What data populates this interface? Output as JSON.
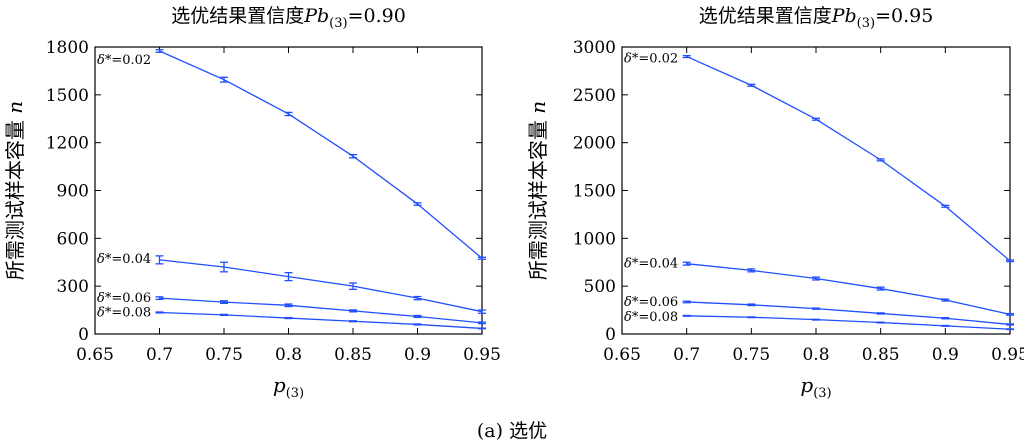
{
  "caption": "(a) 选优",
  "color": "#1f4fff",
  "chart_data": [
    {
      "type": "line",
      "title_prefix": "选优结果置信度",
      "title_var": "Pb",
      "title_sub": "(3)",
      "title_value": "=0.90",
      "xlabel_var": "p",
      "xlabel_sub": "(3)",
      "ylabel_text": "所需测试样本容量",
      "ylabel_var": "n",
      "xlim": [
        0.65,
        0.95
      ],
      "ylim": [
        0,
        1800
      ],
      "xticks": [
        0.65,
        0.7,
        0.75,
        0.8,
        0.85,
        0.9,
        0.95
      ],
      "xtick_labels": [
        "0.65",
        "0.7",
        "0.75",
        "0.8",
        "0.85",
        "0.9",
        "0.95"
      ],
      "yticks": [
        0,
        300,
        600,
        900,
        1200,
        1500,
        1800
      ],
      "ytick_labels": [
        "0",
        "300",
        "600",
        "900",
        "1200",
        "1500",
        "1800"
      ],
      "x": [
        0.7,
        0.75,
        0.8,
        0.85,
        0.9,
        0.95
      ],
      "series": [
        {
          "name": "δ*=0.02",
          "label_delta": "δ*",
          "label_value": "=0.02",
          "values": [
            1775,
            1595,
            1380,
            1115,
            815,
            475
          ],
          "errors": [
            8,
            15,
            10,
            10,
            8,
            6
          ]
        },
        {
          "name": "δ*=0.04",
          "label_delta": "δ*",
          "label_value": "=0.04",
          "values": [
            465,
            420,
            360,
            300,
            225,
            140
          ],
          "errors": [
            25,
            30,
            25,
            20,
            10,
            10
          ]
        },
        {
          "name": "δ*=0.06",
          "label_delta": "δ*",
          "label_value": "=0.06",
          "values": [
            225,
            200,
            180,
            145,
            110,
            70
          ],
          "errors": [
            8,
            8,
            8,
            6,
            6,
            5
          ]
        },
        {
          "name": "δ*=0.08",
          "label_delta": "δ*",
          "label_value": "=0.08",
          "values": [
            135,
            120,
            100,
            80,
            60,
            35
          ],
          "errors": [
            3,
            3,
            3,
            3,
            3,
            2
          ]
        }
      ]
    },
    {
      "type": "line",
      "title_prefix": "选优结果置信度",
      "title_var": "Pb",
      "title_sub": "(3)",
      "title_value": "=0.95",
      "xlabel_var": "p",
      "xlabel_sub": "(3)",
      "ylabel_text": "所需测试样本容量",
      "ylabel_var": "n",
      "xlim": [
        0.65,
        0.95
      ],
      "ylim": [
        0,
        3000
      ],
      "xticks": [
        0.65,
        0.7,
        0.75,
        0.8,
        0.85,
        0.9,
        0.95
      ],
      "xtick_labels": [
        "0.65",
        "0.7",
        "0.75",
        "0.8",
        "0.85",
        "0.9",
        "0.95"
      ],
      "yticks": [
        0,
        500,
        1000,
        1500,
        2000,
        2500,
        3000
      ],
      "ytick_labels": [
        "0",
        "500",
        "1000",
        "1500",
        "2000",
        "2500",
        "3000"
      ],
      "x": [
        0.7,
        0.75,
        0.8,
        0.85,
        0.9,
        0.95
      ],
      "series": [
        {
          "name": "δ*=0.02",
          "label_delta": "δ*",
          "label_value": "=0.02",
          "values": [
            2900,
            2600,
            2245,
            1820,
            1335,
            765
          ],
          "errors": [
            10,
            10,
            10,
            10,
            10,
            8
          ]
        },
        {
          "name": "δ*=0.04",
          "label_delta": "δ*",
          "label_value": "=0.04",
          "values": [
            735,
            665,
            580,
            475,
            355,
            205
          ],
          "errors": [
            15,
            15,
            15,
            15,
            10,
            8
          ]
        },
        {
          "name": "δ*=0.06",
          "label_delta": "δ*",
          "label_value": "=0.06",
          "values": [
            335,
            305,
            265,
            215,
            165,
            100
          ],
          "errors": [
            8,
            8,
            6,
            6,
            6,
            5
          ]
        },
        {
          "name": "δ*=0.08",
          "label_delta": "δ*",
          "label_value": "=0.08",
          "values": [
            190,
            175,
            150,
            120,
            85,
            50
          ],
          "errors": [
            4,
            4,
            4,
            4,
            4,
            3
          ]
        }
      ]
    }
  ]
}
